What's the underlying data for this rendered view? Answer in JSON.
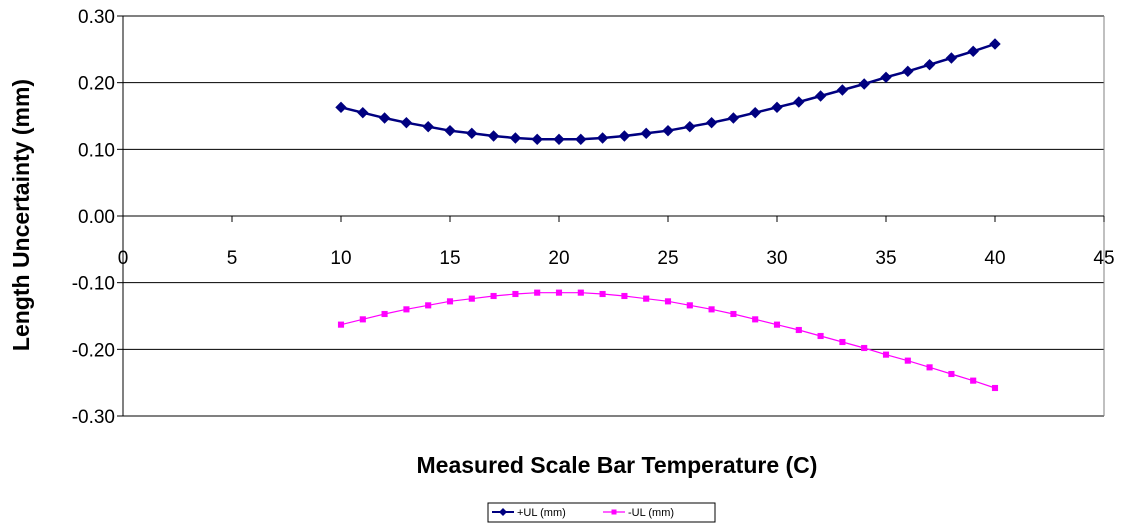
{
  "chart_data": {
    "type": "line",
    "title": "",
    "xlabel": "Measured Scale Bar Temperature (C)",
    "ylabel": "Length Uncertainty (mm)",
    "xlim": [
      0,
      45
    ],
    "ylim": [
      -0.3,
      0.3
    ],
    "x_ticks": [
      "0",
      "5",
      "10",
      "15",
      "20",
      "25",
      "30",
      "35",
      "40",
      "45"
    ],
    "y_ticks": [
      "0.30",
      "0.20",
      "0.10",
      "0.00",
      "-0.10",
      "-0.20",
      "-0.30"
    ],
    "y_tick_values": [
      0.3,
      0.2,
      0.1,
      0.0,
      -0.1,
      -0.2,
      -0.3
    ],
    "x_tick_values": [
      0,
      5,
      10,
      15,
      20,
      25,
      30,
      35,
      40,
      45
    ],
    "grid": "horizontal",
    "legend_position": "bottom-center",
    "x": [
      10,
      11,
      12,
      13,
      14,
      15,
      16,
      17,
      18,
      19,
      20,
      21,
      22,
      23,
      24,
      25,
      26,
      27,
      28,
      29,
      30,
      31,
      32,
      33,
      34,
      35,
      36,
      37,
      38,
      39,
      40
    ],
    "series": [
      {
        "name": "+UL (mm)",
        "color": "#000080",
        "marker": "diamond",
        "values": [
          0.163,
          0.155,
          0.147,
          0.14,
          0.134,
          0.128,
          0.124,
          0.12,
          0.117,
          0.115,
          0.115,
          0.115,
          0.117,
          0.12,
          0.124,
          0.128,
          0.134,
          0.14,
          0.147,
          0.155,
          0.163,
          0.171,
          0.18,
          0.189,
          0.198,
          0.208,
          0.217,
          0.227,
          0.237,
          0.247,
          0.258
        ]
      },
      {
        "name": "-UL (mm)",
        "color": "#FF00FF",
        "marker": "square",
        "values": [
          -0.163,
          -0.155,
          -0.147,
          -0.14,
          -0.134,
          -0.128,
          -0.124,
          -0.12,
          -0.117,
          -0.115,
          -0.115,
          -0.115,
          -0.117,
          -0.12,
          -0.124,
          -0.128,
          -0.134,
          -0.14,
          -0.147,
          -0.155,
          -0.163,
          -0.171,
          -0.18,
          -0.189,
          -0.198,
          -0.208,
          -0.217,
          -0.227,
          -0.237,
          -0.247,
          -0.258
        ]
      }
    ]
  }
}
